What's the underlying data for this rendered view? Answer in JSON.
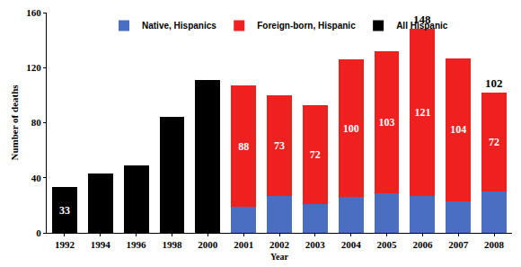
{
  "chart_data": {
    "type": "bar",
    "stacked": true,
    "x_label": "Year",
    "y_label": "Number of deaths",
    "categories": [
      "1992",
      "1994",
      "1996",
      "1998",
      "2000",
      "2001",
      "2002",
      "2003",
      "2004",
      "2005",
      "2006",
      "2007",
      "2008"
    ],
    "series": [
      {
        "name": "Native, Hispanics",
        "color": "#4a6fc2",
        "values": [
          null,
          null,
          null,
          null,
          null,
          19,
          27,
          21,
          26,
          29,
          27,
          23,
          30
        ]
      },
      {
        "name": "Foreign-born, Hispanic",
        "color": "#ee2020",
        "data_labels": true,
        "values": [
          null,
          null,
          null,
          null,
          null,
          88,
          73,
          72,
          100,
          103,
          121,
          104,
          72
        ]
      },
      {
        "name": "All Hispanic",
        "color": "#000000",
        "values": [
          33,
          43,
          49,
          84,
          111,
          null,
          null,
          null,
          null,
          null,
          null,
          null,
          null
        ],
        "value_labels": [
          "33",
          null,
          null,
          null,
          null,
          null,
          null,
          null,
          null,
          null,
          null,
          null,
          null
        ]
      }
    ],
    "annotations": [
      {
        "category": "2006",
        "text": "148"
      },
      {
        "category": "2008",
        "text": "102"
      }
    ],
    "ylim": [
      0,
      160
    ],
    "yticks": [
      0,
      40,
      80,
      120,
      160
    ],
    "grid": false,
    "legend": "top"
  }
}
